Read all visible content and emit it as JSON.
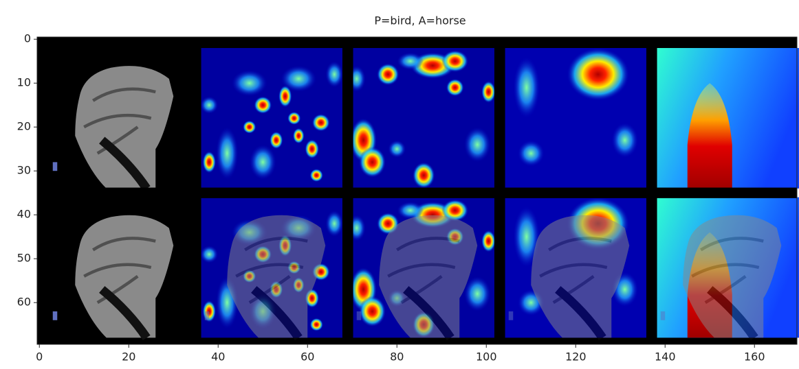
{
  "chart_data": {
    "type": "image",
    "title": "P=bird, A=horse",
    "xlim": [
      -0.5,
      169.5
    ],
    "xticks": [
      0,
      20,
      40,
      60,
      80,
      100,
      120,
      140,
      160
    ],
    "ylim": [
      69.5,
      -0.5
    ],
    "yticks": [
      0,
      10,
      20,
      30,
      40,
      50,
      60
    ]
  }
}
